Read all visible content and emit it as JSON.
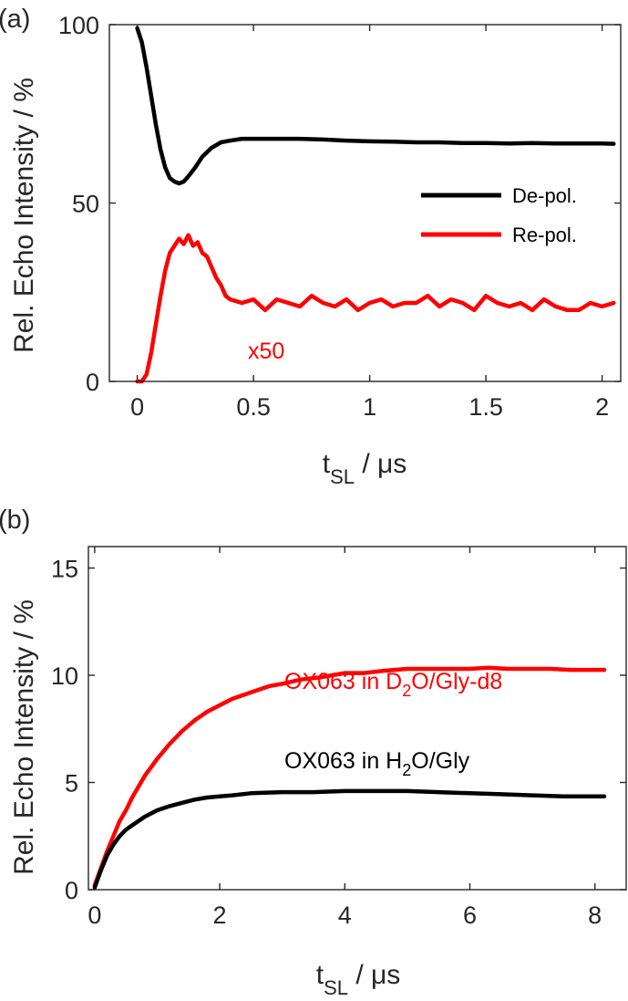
{
  "chart_data": [
    {
      "type": "line",
      "panel_label": "(a)",
      "xlabel_main": "t",
      "xlabel_sub": "SL",
      "xlabel_unit": " / μs",
      "ylabel": "Rel. Echo Intensity / %",
      "xlim": [
        -0.12,
        2.08
      ],
      "ylim": [
        0,
        100
      ],
      "xticks": [
        0,
        0.5,
        1,
        1.5,
        2
      ],
      "xtick_labels": [
        "0",
        "0.5",
        "1",
        "1.5",
        "2"
      ],
      "yticks": [
        0,
        50,
        100
      ],
      "ytick_labels": [
        "0",
        "50",
        "100"
      ],
      "legend_position": "right-middle",
      "series": [
        {
          "name": "De-pol.",
          "color": "#000000",
          "x": [
            0.0,
            0.02,
            0.04,
            0.06,
            0.08,
            0.1,
            0.12,
            0.14,
            0.16,
            0.18,
            0.2,
            0.22,
            0.25,
            0.28,
            0.32,
            0.36,
            0.4,
            0.45,
            0.5,
            0.6,
            0.7,
            0.8,
            0.9,
            1.0,
            1.1,
            1.2,
            1.3,
            1.4,
            1.5,
            1.6,
            1.7,
            1.8,
            1.9,
            2.0,
            2.05
          ],
          "y": [
            99,
            95,
            88,
            80,
            72,
            65,
            60,
            57,
            56,
            55.5,
            56,
            57.5,
            60,
            63,
            65.5,
            67,
            67.5,
            68,
            68,
            68,
            68,
            67.8,
            67.5,
            67.3,
            67.2,
            67.0,
            67.0,
            66.8,
            66.8,
            66.7,
            66.8,
            66.7,
            66.7,
            66.7,
            66.6
          ]
        },
        {
          "name": "Re-pol.",
          "color": "#ff0000",
          "x": [
            0.0,
            0.02,
            0.04,
            0.06,
            0.08,
            0.1,
            0.12,
            0.14,
            0.16,
            0.18,
            0.2,
            0.22,
            0.24,
            0.26,
            0.28,
            0.3,
            0.32,
            0.34,
            0.36,
            0.38,
            0.4,
            0.45,
            0.5,
            0.55,
            0.6,
            0.65,
            0.7,
            0.75,
            0.8,
            0.85,
            0.9,
            0.95,
            1.0,
            1.05,
            1.1,
            1.15,
            1.2,
            1.25,
            1.3,
            1.35,
            1.4,
            1.45,
            1.5,
            1.55,
            1.6,
            1.65,
            1.7,
            1.75,
            1.8,
            1.85,
            1.9,
            1.95,
            2.0,
            2.05
          ],
          "y": [
            0,
            0,
            2,
            8,
            16,
            24,
            31,
            36,
            38,
            40,
            38.5,
            41,
            38,
            39,
            36,
            35,
            32,
            29,
            27,
            24,
            23,
            22,
            23,
            20,
            23,
            22,
            21,
            24,
            22,
            21,
            23,
            20,
            22,
            23,
            21,
            22,
            22,
            24,
            21,
            23,
            22,
            20,
            24,
            22,
            21,
            22,
            20,
            23,
            21,
            20,
            20,
            22,
            21,
            22
          ]
        }
      ],
      "annotation": "x50",
      "annotation_color": "#ff0000"
    },
    {
      "type": "line",
      "panel_label": "(b)",
      "xlabel_main": "t",
      "xlabel_sub": "SL",
      "xlabel_unit": " / μs",
      "ylabel": "Rel. Echo Intensity / %",
      "xlim": [
        -0.1,
        8.5
      ],
      "ylim": [
        0,
        16
      ],
      "xticks": [
        0,
        2,
        4,
        6,
        8
      ],
      "xtick_labels": [
        "0",
        "2",
        "4",
        "6",
        "8"
      ],
      "yticks": [
        0,
        5,
        10,
        15
      ],
      "ytick_labels": [
        "0",
        "5",
        "10",
        "15"
      ],
      "series": [
        {
          "name": "OX063 in D2O/Gly-d8",
          "label_main": "OX063 in D",
          "label_sub": "2",
          "label_rest": "O/Gly-d8",
          "color": "#ff0000",
          "x": [
            0.0,
            0.1,
            0.2,
            0.3,
            0.4,
            0.5,
            0.6,
            0.8,
            1.0,
            1.2,
            1.4,
            1.6,
            1.8,
            2.0,
            2.2,
            2.5,
            2.8,
            3.0,
            3.3,
            3.6,
            4.0,
            4.3,
            4.6,
            5.0,
            5.3,
            5.6,
            6.0,
            6.3,
            6.6,
            7.0,
            7.3,
            7.6,
            8.0,
            8.15
          ],
          "y": [
            0.2,
            1.0,
            1.8,
            2.5,
            3.2,
            3.7,
            4.3,
            5.3,
            6.1,
            6.8,
            7.4,
            7.9,
            8.3,
            8.6,
            8.9,
            9.2,
            9.5,
            9.6,
            9.8,
            9.9,
            10.1,
            10.1,
            10.2,
            10.3,
            10.3,
            10.3,
            10.3,
            10.35,
            10.3,
            10.3,
            10.3,
            10.25,
            10.25,
            10.25
          ]
        },
        {
          "name": "OX063 in H2O/Gly",
          "label_main": "OX063 in H",
          "label_sub": "2",
          "label_rest": "O/Gly",
          "color": "#000000",
          "x": [
            0.0,
            0.1,
            0.2,
            0.3,
            0.4,
            0.5,
            0.6,
            0.8,
            1.0,
            1.2,
            1.4,
            1.6,
            1.8,
            2.0,
            2.2,
            2.5,
            3.0,
            3.5,
            4.0,
            4.5,
            5.0,
            5.5,
            6.0,
            6.5,
            7.0,
            7.5,
            8.0,
            8.15
          ],
          "y": [
            0.1,
            0.9,
            1.6,
            2.1,
            2.5,
            2.8,
            3.0,
            3.4,
            3.7,
            3.9,
            4.05,
            4.2,
            4.3,
            4.35,
            4.4,
            4.5,
            4.55,
            4.55,
            4.6,
            4.6,
            4.6,
            4.55,
            4.5,
            4.45,
            4.4,
            4.35,
            4.35,
            4.35
          ]
        }
      ]
    }
  ]
}
